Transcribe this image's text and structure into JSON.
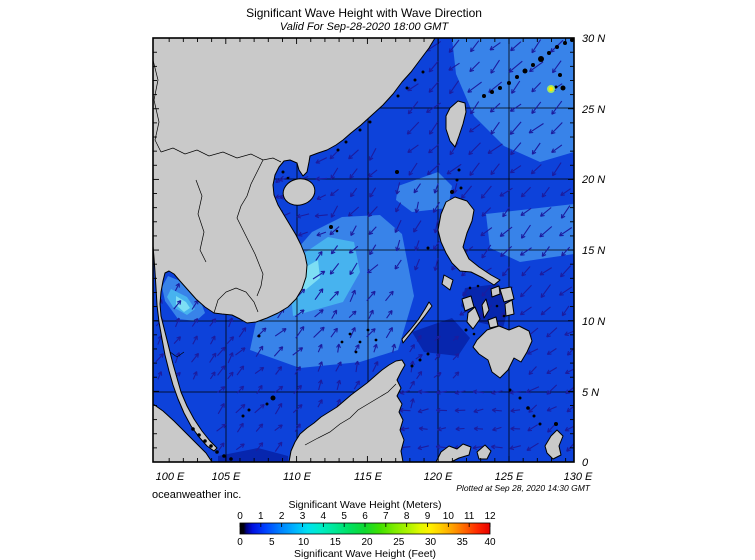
{
  "title": "Significant Wave Height with Wave Direction",
  "subtitle": "Valid For Sep-28-2020 18:00 GMT",
  "credit": "oceanweather inc.",
  "plotted": "Plotted at Sep 28, 2020 14:30 GMT",
  "axes": {
    "lon_labels": [
      "100 E",
      "105 E",
      "110 E",
      "115 E",
      "120 E",
      "125 E",
      "130 E"
    ],
    "lat_labels": [
      "30 N",
      "25 N",
      "20 N",
      "15 N",
      "10 N",
      "5 N",
      "0"
    ],
    "lon_values": [
      100,
      105,
      110,
      115,
      120,
      125,
      130
    ],
    "lat_values": [
      30,
      25,
      20,
      15,
      10,
      5,
      0
    ]
  },
  "legend": {
    "meters_title": "Significant Wave Height (Meters)",
    "feet_title": "Significant Wave Height (Feet)",
    "meters_ticks": [
      0,
      1,
      2,
      3,
      4,
      5,
      6,
      7,
      8,
      9,
      10,
      11,
      12
    ],
    "feet_ticks": [
      0,
      5,
      10,
      15,
      20,
      25,
      30,
      35,
      40
    ]
  },
  "colors": {
    "sea_base": "#0d42da",
    "sea_light": "#3883e9",
    "sea_cyan": "#47b3ef",
    "sea_bright": "#7ddef4",
    "sea_dark": "#0726ae",
    "land": "#c9c9c9",
    "coast": "#000000",
    "grid": "#000000",
    "arrow": "#1c1c9e",
    "hotspot_core": "#ffe800",
    "hotspot_ring": "#9fe868"
  },
  "map": {
    "extent": {
      "lon_min": 100,
      "lon_max": 129.6,
      "lat_min": 0,
      "lat_max": 30
    },
    "arrow_zones": [
      {
        "lon0": 117.5,
        "lon1": 129.5,
        "lat0": 20,
        "lat1": 30,
        "dir": 225,
        "len": 15,
        "step": 1.45
      },
      {
        "lon0": 121.3,
        "lon1": 129.5,
        "lat0": 10,
        "lat1": 20,
        "dir": 224,
        "len": 14,
        "step": 1.4
      },
      {
        "lon0": 108.5,
        "lon1": 112,
        "lat0": 15.5,
        "lat1": 22.3,
        "dir": 195,
        "len": 11,
        "step": 1.3
      },
      {
        "lon0": 112,
        "lon1": 116.5,
        "lat0": 13,
        "lat1": 22.3,
        "dir": 230,
        "len": 12,
        "step": 1.35
      },
      {
        "lon0": 116.5,
        "lon1": 121.3,
        "lat0": 13.3,
        "lat1": 20,
        "dir": 247,
        "len": 12,
        "step": 1.35
      },
      {
        "lon0": 105.5,
        "lon1": 112,
        "lat0": 8.5,
        "lat1": 15.5,
        "dir": 45,
        "len": 13,
        "step": 1.35
      },
      {
        "lon0": 112,
        "lon1": 117,
        "lat0": 8.5,
        "lat1": 13,
        "dir": 55,
        "len": 11,
        "step": 1.3
      },
      {
        "lon0": 99.7,
        "lon1": 105.5,
        "lat0": 5.5,
        "lat1": 13.2,
        "dir": 58,
        "len": 10,
        "step": 1.25
      },
      {
        "lon0": 104,
        "lon1": 111,
        "lat0": 0.4,
        "lat1": 8.5,
        "dir": 48,
        "len": 11,
        "step": 1.35
      },
      {
        "lon0": 111,
        "lon1": 118.5,
        "lat0": 3.5,
        "lat1": 8.5,
        "dir": 70,
        "len": 10,
        "step": 1.3
      },
      {
        "lon0": 118,
        "lon1": 122.5,
        "lat0": 5.5,
        "lat1": 9.3,
        "dir": 45,
        "len": 8,
        "step": 1.3
      },
      {
        "lon0": 117,
        "lon1": 126,
        "lat0": 0.4,
        "lat1": 5,
        "dir": 185,
        "len": 10,
        "step": 1.3
      },
      {
        "lon0": 126,
        "lon1": 129.5,
        "lat0": 0.4,
        "lat1": 10,
        "dir": 215,
        "len": 12,
        "step": 1.35
      },
      {
        "lon0": 105.8,
        "lon1": 110,
        "lat0": 17,
        "lat1": 21.2,
        "dir": 208,
        "len": 9,
        "step": 1.2
      }
    ]
  }
}
